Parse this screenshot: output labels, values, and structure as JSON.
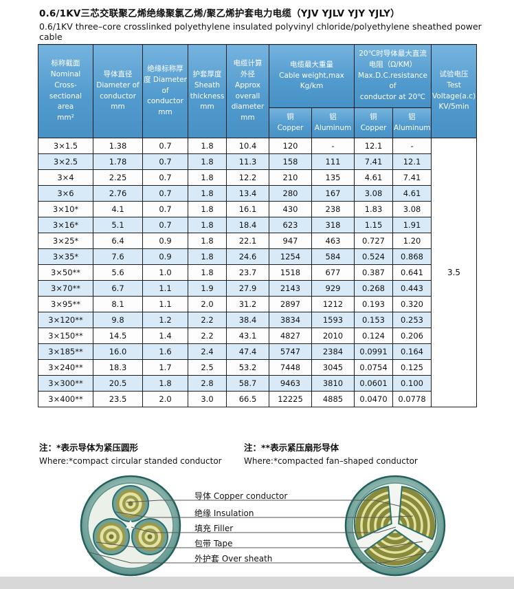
{
  "title": {
    "zh": "0.6/1KV三芯交联聚乙烯绝缘聚氯乙烯/聚乙烯护套电力电缆（YJV YJLV YJY YJLY）",
    "en": "0.6/1KV three–core crosslinked polyethylene insulated polyvinyl chloride/polyethylene sheathed power cable"
  },
  "table": {
    "headers": {
      "nominal": [
        "标称截面",
        "Nominal",
        "Cross-sectional",
        "area",
        "mm²"
      ],
      "conductor_diameter": [
        "导体直径",
        "Diameter of",
        "conductor",
        "mm"
      ],
      "insulation_thickness": [
        "绝缘标称厚",
        "度 Diameter",
        "of conductor",
        "mm"
      ],
      "sheath_thickness": [
        "护套厚度",
        "Sheath",
        "thickness",
        "mm"
      ],
      "overall_diameter": [
        "电缆计算",
        "外径",
        "Approx",
        "overall",
        "diameter",
        "mm"
      ],
      "weight_group": [
        "电缆最大重量",
        "Cable weight,max",
        "Kg/km"
      ],
      "weight_copper": [
        "铜",
        "Copper"
      ],
      "weight_aluminum": [
        "铝",
        "Aluminum"
      ],
      "resistance_group": [
        "20℃时导体最大直流",
        "电阻（Ω/KM）",
        "Max.D.C.resistance of",
        "conductor at 20℃"
      ],
      "resistance_copper": [
        "铜",
        "Copper"
      ],
      "resistance_aluminum": [
        "铝",
        "Aluminum"
      ],
      "test_voltage": [
        "试验电压",
        "Test",
        "Voltage(a.c)",
        "KV/5min"
      ]
    },
    "rows": [
      [
        "3×1.5",
        "1.38",
        "0.7",
        "1.8",
        "10.4",
        "120",
        "-",
        "12.1",
        "-"
      ],
      [
        "3×2.5",
        "1.78",
        "0.7",
        "1.8",
        "11.3",
        "158",
        "111",
        "7.41",
        "12.1"
      ],
      [
        "3×4",
        "2.25",
        "0.7",
        "1.8",
        "12.2",
        "210",
        "135",
        "4.61",
        "7.41"
      ],
      [
        "3×6",
        "2.76",
        "0.7",
        "1.8",
        "13.4",
        "280",
        "167",
        "3.08",
        "4.61"
      ],
      [
        "3×10*",
        "4.1",
        "0.7",
        "1.8",
        "16.1",
        "430",
        "238",
        "1.83",
        "3.08"
      ],
      [
        "3×16*",
        "5.1",
        "0.7",
        "1.8",
        "18.4",
        "623",
        "318",
        "1.15",
        "1.91"
      ],
      [
        "3×25*",
        "6.4",
        "0.9",
        "1.8",
        "22.1",
        "947",
        "463",
        "0.727",
        "1.20"
      ],
      [
        "3×35*",
        "7.6",
        "0.9",
        "1.8",
        "24.6",
        "1254",
        "584",
        "0.524",
        "0.868"
      ],
      [
        "3×50**",
        "5.6",
        "1.0",
        "1.8",
        "23.7",
        "1518",
        "677",
        "0.387",
        "0.641"
      ],
      [
        "3×70**",
        "6.7",
        "1.1",
        "1.9",
        "27.9",
        "2143",
        "929",
        "0.268",
        "0.443"
      ],
      [
        "3×95**",
        "8.1",
        "1.1",
        "2.0",
        "31.2",
        "2897",
        "1212",
        "0.193",
        "0.320"
      ],
      [
        "3×120**",
        "9.8",
        "1.2",
        "2.2",
        "38.4",
        "3834",
        "1593",
        "0.153",
        "0.253"
      ],
      [
        "3×150**",
        "14.5",
        "1.4",
        "2.2",
        "43.1",
        "4827",
        "2010",
        "0.124",
        "0.206"
      ],
      [
        "3×185**",
        "16.0",
        "1.6",
        "2.4",
        "47.4",
        "5747",
        "2384",
        "0.0991",
        "0.164"
      ],
      [
        "3×240**",
        "18.3",
        "1.7",
        "2.5",
        "53.2",
        "7448",
        "3045",
        "0.0754",
        "0.125"
      ],
      [
        "3×300**",
        "20.5",
        "1.8",
        "2.8",
        "58.7",
        "9463",
        "3810",
        "0.0601",
        "0.100"
      ],
      [
        "3×400**",
        "23.5",
        "2.0",
        "3.0",
        "66.5",
        "12225",
        "4885",
        "0.0470",
        "0.0778"
      ]
    ],
    "test_voltage_value": "3.5"
  },
  "notes": {
    "left_zh": "注：*表示导体为紧压圆形",
    "left_en": "Where:*compact circular standed conductor",
    "right_zh": "注：**表示紧压扇形导体",
    "right_en": "Where:*compacted fan–shaped conductor"
  },
  "diagram": {
    "labels": [
      "导体 Copper conductor",
      "绝缘 Insulation",
      "填充 Filler",
      "包带 Tape",
      "外护套 Over sheath"
    ]
  },
  "colors": {
    "header_blue": "#4d97cb",
    "row_stripe_blue": "#d8eaf7",
    "sheath_teal": "#4a8680",
    "conductor_olive": "#8a8a3c"
  }
}
